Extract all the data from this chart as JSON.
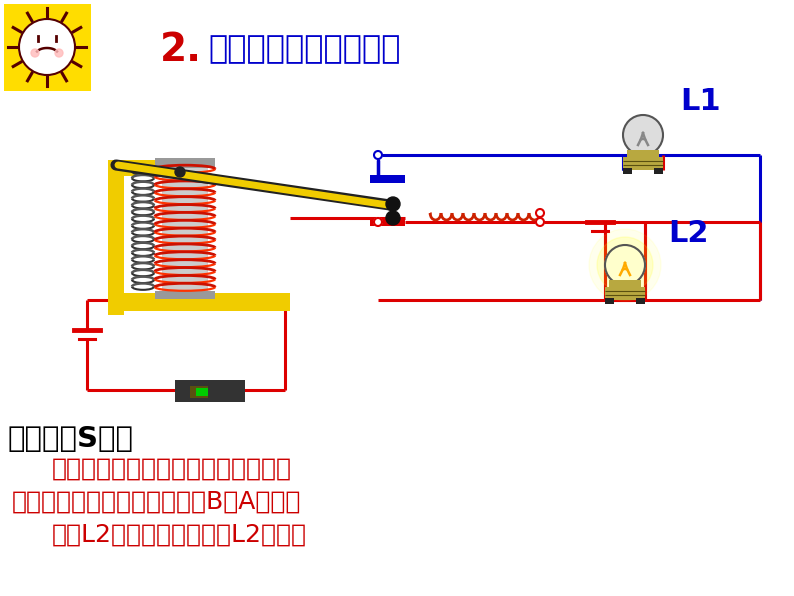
{
  "bg_color": "#ffffff",
  "title_number": "2.",
  "title_number_color": "#cc0000",
  "title_text": "电磁继电器的工作过程",
  "title_text_color": "#0000cc",
  "sun_bg": "#ffdd00",
  "red": "#dd0000",
  "blue": "#0000cc",
  "olive": "#b8a840",
  "dark_olive": "#5a5010",
  "coil_color": "#cc2200",
  "gray_light": "#cccccc",
  "gray_mid": "#999999",
  "gray_dark": "#555555",
  "yellow_frame": "#f0cc00",
  "black": "#111111",
  "green": "#00cc00",
  "line1": "闭合开关S时：",
  "line2": "有电流通过电磁铁的线圈所在电路，",
  "line3": "电磁铁有磁性，衔铁被吸下，B与A接触，",
  "line4": "灯泡L2所在电路为通路，L2发光。",
  "label_L1": "L1",
  "label_L2": "L2",
  "label_color": "#0000cc",
  "text_black": "#000000",
  "text_red": "#cc0000"
}
